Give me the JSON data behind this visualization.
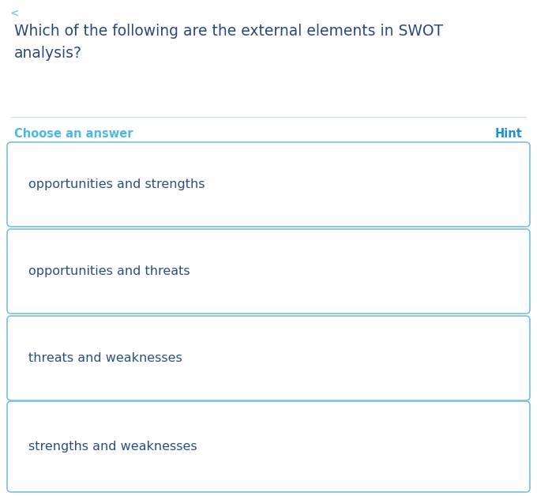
{
  "question_line1": "Which of the following are the external elements in SWOT",
  "question_line2": "analysis?",
  "question_color": "#2a4a7a",
  "question_fontsize": 13.5,
  "section_label": "Choose an answer",
  "hint_label": "Hint",
  "label_color": "#4db8e8",
  "hint_color": "#1a8fe0",
  "label_fontsize": 10.5,
  "options": [
    "opportunities and strengths",
    "opportunities and threats",
    "threats and weaknesses",
    "strengths and weaknesses"
  ],
  "option_text_color": "#2a5080",
  "option_fontsize": 11.5,
  "box_border_color": "#7abfe0",
  "box_bg_color": "#ffffff",
  "background_color": "#ffffff",
  "separator_color": "#c8dde8",
  "back_arrow_color": "#88ccee",
  "back_arrow_fontsize": 10
}
